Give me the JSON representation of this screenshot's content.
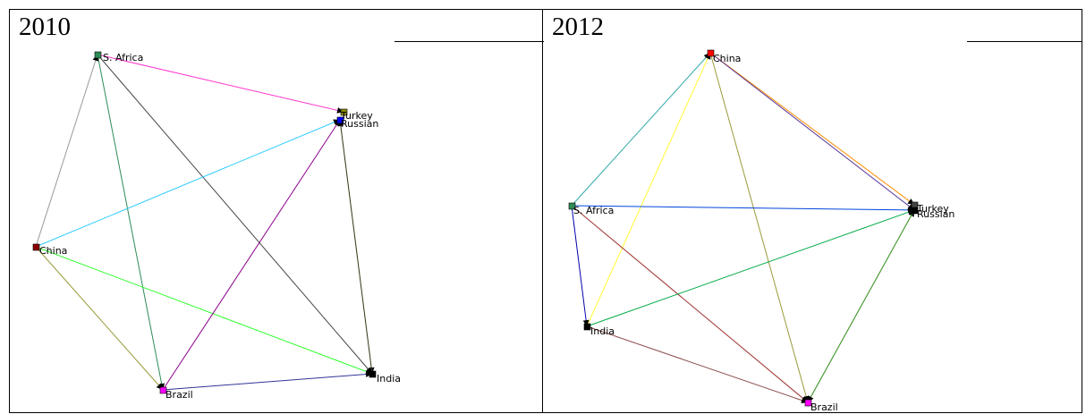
{
  "panels": [
    {
      "year": "2010",
      "nodes": [
        {
          "label": "S. Africa",
          "color": "#2e8b57"
        },
        {
          "label": "Turkey",
          "color": "#8b8b00"
        },
        {
          "label": "Russian",
          "color": "#0000ff"
        },
        {
          "label": "China",
          "color": "#8b0000"
        },
        {
          "label": "India",
          "color": "#000000"
        },
        {
          "label": "Brazil",
          "color": "#ff00ff"
        }
      ],
      "edges": [
        {
          "from": "S. Africa",
          "to": "Turkey",
          "color": "#ff33cc"
        },
        {
          "from": "S. Africa",
          "to": "India",
          "color": "#444444"
        },
        {
          "from": "S. Africa",
          "to": "Brazil",
          "color": "#2e8b57"
        },
        {
          "from": "China",
          "to": "S. Africa",
          "color": "#999999"
        },
        {
          "from": "China",
          "to": "Russian",
          "color": "#33ccff"
        },
        {
          "from": "China",
          "to": "Brazil",
          "color": "#9a9a3a"
        },
        {
          "from": "China",
          "to": "India",
          "color": "#33ff33"
        },
        {
          "from": "Brazil",
          "to": "Russian",
          "color": "#8b008b"
        },
        {
          "from": "Brazil",
          "to": "India",
          "color": "#333399"
        },
        {
          "from": "Russian",
          "to": "India",
          "color": "#ffff33"
        },
        {
          "from": "India",
          "to": "Russian",
          "color": "#333333"
        }
      ]
    },
    {
      "year": "2012",
      "nodes": [
        {
          "label": "China",
          "color": "#ff0000"
        },
        {
          "label": "Turkey",
          "color": "#444444"
        },
        {
          "label": "Russian",
          "color": "#000000"
        },
        {
          "label": "S. Africa",
          "color": "#2e8b57"
        },
        {
          "label": "India",
          "color": "#000000"
        },
        {
          "label": "Brazil",
          "color": "#ff00ff"
        }
      ],
      "edges": [
        {
          "from": "S. Africa",
          "to": "China",
          "color": "#33aaaa"
        },
        {
          "from": "India",
          "to": "China",
          "color": "#ffff33"
        },
        {
          "from": "China",
          "to": "Brazil",
          "color": "#9a9a3a"
        },
        {
          "from": "China",
          "to": "Turkey",
          "color": "#ff8c00"
        },
        {
          "from": "China",
          "to": "Russian",
          "color": "#553399"
        },
        {
          "from": "S. Africa",
          "to": "Russian",
          "color": "#0044dd"
        },
        {
          "from": "S. Africa",
          "to": "India",
          "color": "#0000aa"
        },
        {
          "from": "S. Africa",
          "to": "Brazil",
          "color": "#a03030"
        },
        {
          "from": "India",
          "to": "Russian",
          "color": "#00aa44"
        },
        {
          "from": "India",
          "to": "Brazil",
          "color": "#8b4a4a"
        },
        {
          "from": "Brazil",
          "to": "Russian",
          "color": "#cc3333"
        },
        {
          "from": "Russian",
          "to": "Brazil",
          "color": "#33aa33"
        }
      ]
    }
  ]
}
